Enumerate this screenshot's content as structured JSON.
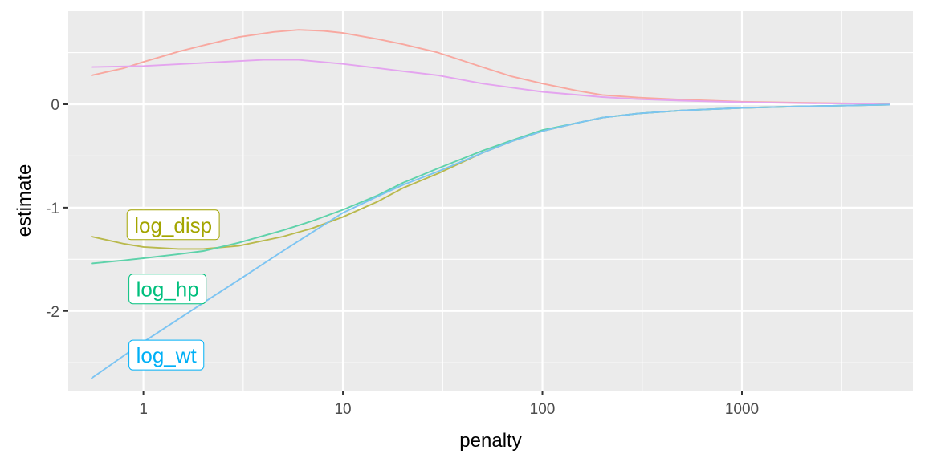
{
  "chart_data": {
    "type": "line",
    "xlabel": "penalty",
    "ylabel": "estimate",
    "x_scale": "log10",
    "xlim": [
      0.42,
      7200
    ],
    "ylim": [
      -2.77,
      0.9
    ],
    "x_ticks": [
      1,
      10,
      100,
      1000
    ],
    "x_tick_labels": [
      "1",
      "10",
      "100",
      "1000"
    ],
    "y_ticks": [
      0,
      -1,
      -2
    ],
    "y_tick_labels": [
      "0",
      "-1",
      "-2"
    ],
    "grid": true,
    "background": "#ebebeb",
    "series": [
      {
        "name": "",
        "color": "#f8a8a0",
        "points": [
          [
            0.55,
            0.28
          ],
          [
            0.8,
            0.35
          ],
          [
            1,
            0.41
          ],
          [
            1.5,
            0.51
          ],
          [
            2,
            0.57
          ],
          [
            3,
            0.65
          ],
          [
            4.5,
            0.7
          ],
          [
            6,
            0.72
          ],
          [
            8,
            0.71
          ],
          [
            10,
            0.69
          ],
          [
            15,
            0.63
          ],
          [
            20,
            0.58
          ],
          [
            30,
            0.5
          ],
          [
            50,
            0.36
          ],
          [
            70,
            0.27
          ],
          [
            100,
            0.2
          ],
          [
            150,
            0.13
          ],
          [
            200,
            0.09
          ],
          [
            300,
            0.065
          ],
          [
            500,
            0.045
          ],
          [
            1000,
            0.025
          ],
          [
            2000,
            0.015
          ],
          [
            5500,
            0.003
          ]
        ]
      },
      {
        "name": "",
        "color": "#e4a4ef",
        "points": [
          [
            0.55,
            0.36
          ],
          [
            1,
            0.37
          ],
          [
            2,
            0.4
          ],
          [
            4,
            0.43
          ],
          [
            6,
            0.43
          ],
          [
            10,
            0.39
          ],
          [
            15,
            0.35
          ],
          [
            20,
            0.32
          ],
          [
            30,
            0.28
          ],
          [
            50,
            0.2
          ],
          [
            100,
            0.12
          ],
          [
            200,
            0.07
          ],
          [
            300,
            0.05
          ],
          [
            500,
            0.035
          ],
          [
            1000,
            0.02
          ],
          [
            2000,
            0.01
          ],
          [
            5500,
            0.002
          ]
        ]
      },
      {
        "name": "log_disp",
        "color": "#b9b94c",
        "label": "log_disp",
        "label_at": [
          0.9,
          -1.17
        ],
        "points": [
          [
            0.55,
            -1.28
          ],
          [
            0.8,
            -1.35
          ],
          [
            1,
            -1.38
          ],
          [
            1.5,
            -1.4
          ],
          [
            2,
            -1.4
          ],
          [
            3,
            -1.37
          ],
          [
            5,
            -1.28
          ],
          [
            7,
            -1.2
          ],
          [
            10,
            -1.09
          ],
          [
            15,
            -0.94
          ],
          [
            20,
            -0.81
          ],
          [
            30,
            -0.67
          ],
          [
            50,
            -0.47
          ],
          [
            70,
            -0.36
          ],
          [
            100,
            -0.26
          ],
          [
            150,
            -0.18
          ],
          [
            200,
            -0.13
          ],
          [
            300,
            -0.09
          ],
          [
            500,
            -0.06
          ],
          [
            1000,
            -0.035
          ],
          [
            2000,
            -0.02
          ],
          [
            5500,
            -0.005
          ]
        ]
      },
      {
        "name": "log_hp",
        "color": "#5ed2aa",
        "label": "log_hp",
        "label_at": [
          0.92,
          -1.79
        ],
        "points": [
          [
            0.55,
            -1.54
          ],
          [
            0.8,
            -1.51
          ],
          [
            1,
            -1.49
          ],
          [
            1.5,
            -1.45
          ],
          [
            2,
            -1.42
          ],
          [
            3,
            -1.34
          ],
          [
            5,
            -1.22
          ],
          [
            7,
            -1.13
          ],
          [
            10,
            -1.02
          ],
          [
            15,
            -0.88
          ],
          [
            20,
            -0.76
          ],
          [
            30,
            -0.62
          ],
          [
            50,
            -0.45
          ],
          [
            70,
            -0.35
          ],
          [
            100,
            -0.25
          ],
          [
            150,
            -0.18
          ],
          [
            200,
            -0.13
          ],
          [
            300,
            -0.09
          ],
          [
            500,
            -0.06
          ],
          [
            1000,
            -0.035
          ],
          [
            2000,
            -0.02
          ],
          [
            5500,
            -0.005
          ]
        ]
      },
      {
        "name": "log_wt",
        "color": "#7cc4f2",
        "label": "log_wt",
        "label_at": [
          0.92,
          -2.43
        ],
        "points": [
          [
            0.55,
            -2.65
          ],
          [
            1,
            -2.3
          ],
          [
            2,
            -1.92
          ],
          [
            3,
            -1.7
          ],
          [
            5,
            -1.42
          ],
          [
            7,
            -1.24
          ],
          [
            10,
            -1.05
          ],
          [
            15,
            -0.89
          ],
          [
            20,
            -0.78
          ],
          [
            30,
            -0.65
          ],
          [
            50,
            -0.47
          ],
          [
            70,
            -0.36
          ],
          [
            100,
            -0.26
          ],
          [
            150,
            -0.18
          ],
          [
            200,
            -0.13
          ],
          [
            300,
            -0.09
          ],
          [
            500,
            -0.06
          ],
          [
            1000,
            -0.035
          ],
          [
            2000,
            -0.02
          ],
          [
            5500,
            -0.005
          ]
        ]
      }
    ],
    "label_text_colors": {
      "log_disp": "#a3a500",
      "log_hp": "#00bf7d",
      "log_wt": "#00b0f6"
    }
  }
}
